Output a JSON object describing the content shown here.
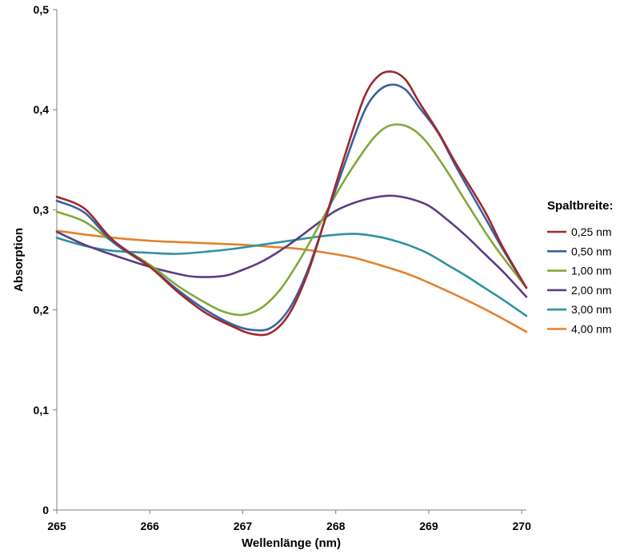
{
  "chart_data": {
    "type": "line",
    "title": "",
    "xlabel": "Wellenlänge (nm)",
    "ylabel": "Absorption",
    "xlim": [
      265,
      270.05
    ],
    "ylim": [
      0,
      0.5
    ],
    "x_ticks": [
      265,
      266,
      267,
      268,
      269,
      270
    ],
    "x_tick_labels": [
      "265",
      "266",
      "267",
      "268",
      "269",
      "270"
    ],
    "y_ticks": [
      0,
      0.1,
      0.2,
      0.3,
      0.4,
      0.5
    ],
    "y_tick_labels": [
      "0",
      "0,1",
      "0,2",
      "0,3",
      "0,4",
      "0,5"
    ],
    "grid": false,
    "legend": {
      "title": "Spaltbreite:",
      "placement": "right"
    },
    "series": [
      {
        "name": "0,25 nm",
        "color": "#a0282c",
        "x": [
          265.0,
          265.3,
          265.6,
          266.0,
          266.3,
          266.6,
          266.9,
          267.1,
          267.3,
          267.5,
          267.7,
          267.9,
          268.1,
          268.3,
          268.45,
          268.6,
          268.75,
          268.9,
          269.1,
          269.3,
          269.6,
          269.8,
          270.05
        ],
        "y": [
          0.313,
          0.301,
          0.27,
          0.243,
          0.218,
          0.197,
          0.183,
          0.176,
          0.177,
          0.196,
          0.237,
          0.295,
          0.355,
          0.411,
          0.433,
          0.438,
          0.43,
          0.407,
          0.378,
          0.345,
          0.299,
          0.262,
          0.222
        ]
      },
      {
        "name": "0,50 nm",
        "color": "#3a62a0",
        "x": [
          265.0,
          265.3,
          265.6,
          266.0,
          266.3,
          266.6,
          266.9,
          267.1,
          267.3,
          267.5,
          267.7,
          267.9,
          268.1,
          268.3,
          268.45,
          268.6,
          268.75,
          268.9,
          269.1,
          269.3,
          269.6,
          269.8,
          270.05
        ],
        "y": [
          0.309,
          0.297,
          0.268,
          0.243,
          0.22,
          0.2,
          0.185,
          0.18,
          0.182,
          0.201,
          0.24,
          0.294,
          0.347,
          0.397,
          0.418,
          0.425,
          0.42,
          0.402,
          0.377,
          0.342,
          0.293,
          0.26,
          0.222
        ]
      },
      {
        "name": "1,00 nm",
        "color": "#82a83c",
        "x": [
          265.0,
          265.3,
          265.6,
          266.0,
          266.3,
          266.6,
          266.8,
          267.0,
          267.2,
          267.4,
          267.6,
          267.8,
          268.0,
          268.2,
          268.4,
          268.55,
          268.7,
          268.85,
          269.0,
          269.2,
          269.4,
          269.7,
          270.05
        ],
        "y": [
          0.298,
          0.288,
          0.268,
          0.245,
          0.224,
          0.207,
          0.198,
          0.195,
          0.202,
          0.22,
          0.248,
          0.281,
          0.315,
          0.345,
          0.371,
          0.383,
          0.385,
          0.379,
          0.365,
          0.338,
          0.308,
          0.265,
          0.222
        ]
      },
      {
        "name": "2,00 nm",
        "color": "#5c3c86",
        "x": [
          265.0,
          265.3,
          265.6,
          266.0,
          266.3,
          266.5,
          266.8,
          267.0,
          267.2,
          267.4,
          267.6,
          267.8,
          268.0,
          268.2,
          268.4,
          268.6,
          268.8,
          269.0,
          269.2,
          269.4,
          269.6,
          269.8,
          270.05
        ],
        "y": [
          0.278,
          0.265,
          0.255,
          0.243,
          0.236,
          0.233,
          0.234,
          0.24,
          0.248,
          0.259,
          0.272,
          0.286,
          0.299,
          0.307,
          0.312,
          0.314,
          0.311,
          0.304,
          0.29,
          0.274,
          0.256,
          0.238,
          0.213
        ]
      },
      {
        "name": "3,00 nm",
        "color": "#30929e",
        "x": [
          265.0,
          265.3,
          265.6,
          266.0,
          266.3,
          266.6,
          266.9,
          267.2,
          267.5,
          267.8,
          268.0,
          268.2,
          268.4,
          268.6,
          268.8,
          269.0,
          269.2,
          269.4,
          269.6,
          269.8,
          270.05
        ],
        "y": [
          0.272,
          0.264,
          0.259,
          0.257,
          0.256,
          0.258,
          0.261,
          0.265,
          0.269,
          0.273,
          0.275,
          0.276,
          0.274,
          0.27,
          0.264,
          0.256,
          0.245,
          0.234,
          0.222,
          0.21,
          0.194
        ]
      },
      {
        "name": "4,00 nm",
        "color": "#e2822e",
        "x": [
          265.0,
          265.5,
          266.0,
          266.5,
          267.0,
          267.3,
          267.6,
          267.9,
          268.2,
          268.5,
          268.8,
          269.1,
          269.4,
          269.7,
          270.05
        ],
        "y": [
          0.279,
          0.273,
          0.269,
          0.267,
          0.265,
          0.263,
          0.261,
          0.257,
          0.252,
          0.244,
          0.235,
          0.223,
          0.21,
          0.196,
          0.178
        ]
      }
    ]
  }
}
